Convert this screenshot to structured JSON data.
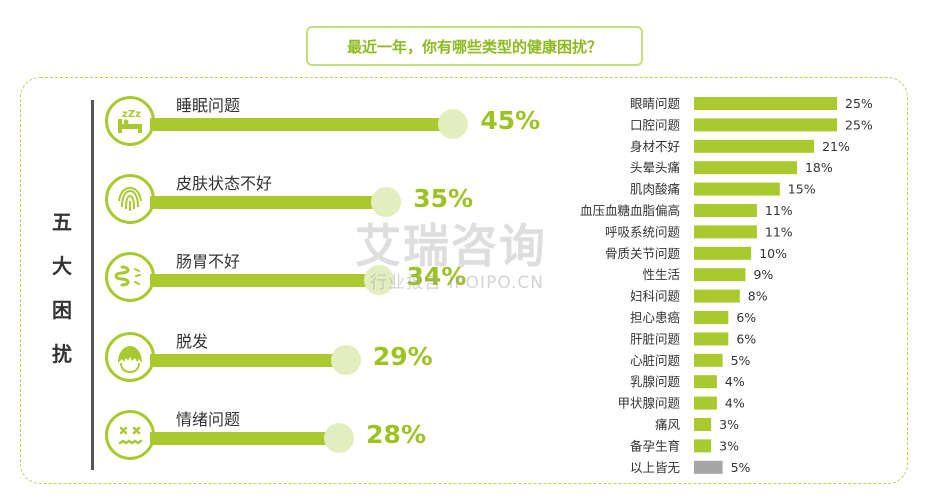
{
  "title": "最近一年，你有哪些类型的健康困扰？",
  "side_title": [
    "五",
    "大",
    "困",
    "扰"
  ],
  "top_worries": [
    {
      "label": "睡眠问题",
      "value": 45,
      "display": "45%",
      "icon": "sleep-icon"
    },
    {
      "label": "皮肤状态不好",
      "value": 35,
      "display": "35%",
      "icon": "fingerprint-icon"
    },
    {
      "label": "肠胃不好",
      "value": 34,
      "display": "34%",
      "icon": "intestine-icon"
    },
    {
      "label": "脱发",
      "value": 29,
      "display": "29%",
      "icon": "hair-icon"
    },
    {
      "label": "情绪问题",
      "value": 28,
      "display": "28%",
      "icon": "mood-icon"
    }
  ],
  "chart_data": {
    "type": "bar",
    "orientation": "horizontal",
    "categories": [
      "眼睛问题",
      "口腔问题",
      "身材不好",
      "头晕头痛",
      "肌肉酸痛",
      "血压血糖血脂偏高",
      "呼吸系统问题",
      "骨质关节问题",
      "性生活",
      "妇科问题",
      "担心患癌",
      "肝脏问题",
      "心脏问题",
      "乳腺问题",
      "甲状腺问题",
      "痛风",
      "备孕生育",
      "以上皆无"
    ],
    "values": [
      25,
      25,
      21,
      18,
      15,
      11,
      11,
      10,
      9,
      8,
      6,
      6,
      5,
      4,
      4,
      3,
      3,
      5
    ],
    "labels": [
      "25%",
      "25%",
      "21%",
      "18%",
      "15%",
      "11%",
      "11%",
      "10%",
      "9%",
      "8%",
      "6%",
      "6%",
      "5%",
      "4%",
      "4%",
      "3%",
      "3%",
      "5%"
    ],
    "colors": {
      "main": "#a9c92f",
      "none": "#a6a6a6"
    }
  },
  "watermark": {
    "main": "艾瑞咨询",
    "sub": "行业报告 IPOIPO.CN"
  },
  "colors": {
    "accent": "#a9c92f",
    "title": "#8dba1e",
    "knob": "#e3edc0"
  }
}
